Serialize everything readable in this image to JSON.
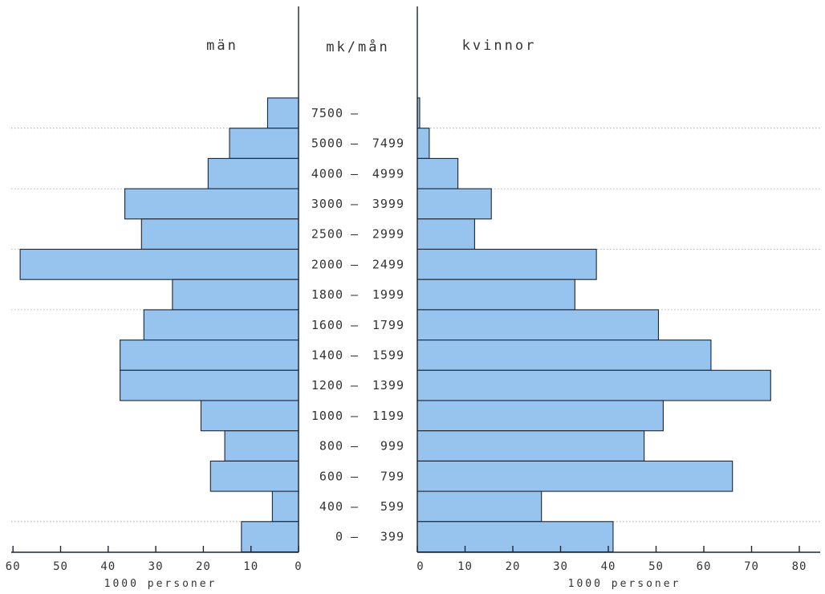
{
  "chart_data": {
    "type": "bar",
    "orientation": "horizontal-pyramid",
    "category_header": "mk/mån",
    "categories": [
      {
        "from": "7500",
        "to": ""
      },
      {
        "from": "5000",
        "to": "7499"
      },
      {
        "from": "4000",
        "to": "4999"
      },
      {
        "from": "3000",
        "to": "3999"
      },
      {
        "from": "2500",
        "to": "2999"
      },
      {
        "from": "2000",
        "to": "2499"
      },
      {
        "from": "1800",
        "to": "1999"
      },
      {
        "from": "1600",
        "to": "1799"
      },
      {
        "from": "1400",
        "to": "1599"
      },
      {
        "from": "1200",
        "to": "1399"
      },
      {
        "from": "1000",
        "to": "1199"
      },
      {
        "from": "800",
        "to": "999"
      },
      {
        "from": "600",
        "to": "799"
      },
      {
        "from": "400",
        "to": "599"
      },
      {
        "from": "0",
        "to": "399"
      }
    ],
    "range_separator": "–",
    "series": [
      {
        "name": "män",
        "side": "left",
        "values": [
          6.5,
          14.5,
          19,
          36.5,
          33,
          58.5,
          26.5,
          32.5,
          37.5,
          37.5,
          20.5,
          15.5,
          18.5,
          5.5,
          12
        ]
      },
      {
        "name": "kvinnor",
        "side": "right",
        "values": [
          0.5,
          2.5,
          8.5,
          15.5,
          12,
          37.5,
          33,
          50.5,
          61.5,
          74,
          51.5,
          47.5,
          66,
          26,
          41
        ]
      }
    ],
    "left_axis": {
      "xlabel": "1000 personer",
      "ticks": [
        60,
        50,
        40,
        30,
        20,
        10,
        0
      ],
      "xlim": [
        0,
        60
      ]
    },
    "right_axis": {
      "xlabel": "1000 personer",
      "ticks": [
        0,
        10,
        20,
        30,
        40,
        50,
        60,
        70,
        80
      ],
      "xlim": [
        0,
        80
      ]
    },
    "gridlines_after_rows": [
      0,
      2,
      4,
      6,
      13
    ],
    "colors": {
      "bar_fill": "#97c4ef",
      "bar_edge": "#1d2533",
      "axis": "#1d2533"
    }
  }
}
